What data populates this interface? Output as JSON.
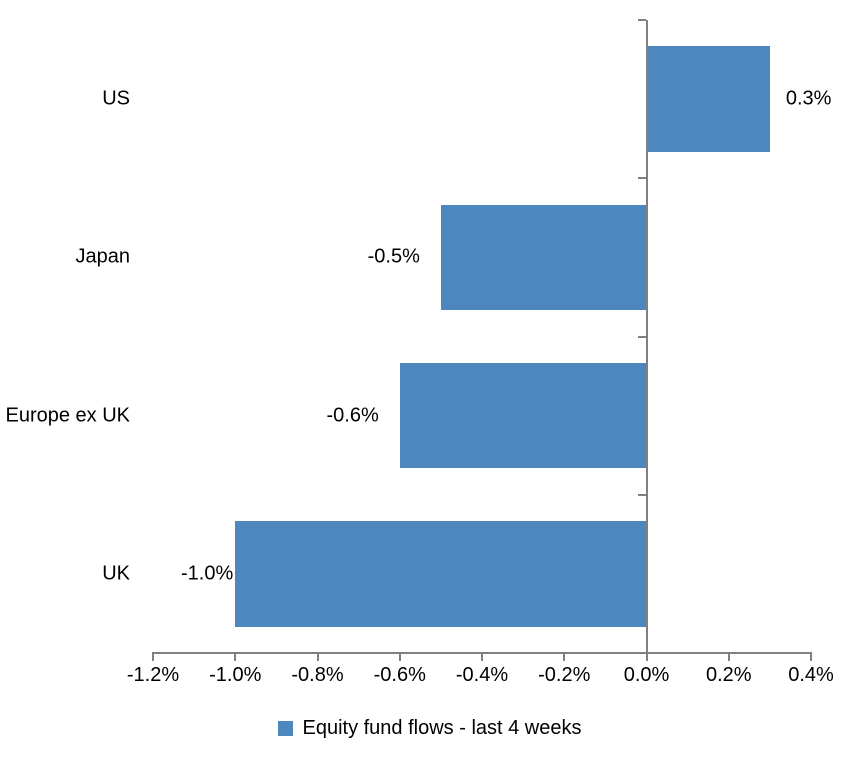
{
  "chart_data": {
    "type": "bar",
    "orientation": "horizontal",
    "title": "",
    "categories": [
      "US",
      "Japan",
      "Europe ex UK",
      "UK"
    ],
    "values": [
      0.3,
      -0.5,
      -0.6,
      -1.0
    ],
    "data_labels": [
      "0.3%",
      "-0.5%",
      "-0.6%",
      "-1.0%"
    ],
    "series_name": "Equity fund flows - last 4 weeks",
    "xlim": [
      -1.2,
      0.4
    ],
    "x_tick_values": [
      -1.2,
      -1.0,
      -0.8,
      -0.6,
      -0.4,
      -0.2,
      0.0,
      0.2,
      0.4
    ],
    "x_tick_labels": [
      "-1.2%",
      "-1.0%",
      "-0.8%",
      "-0.6%",
      "-0.4%",
      "-0.2%",
      "0.0%",
      "0.2%",
      "0.4%"
    ],
    "grid": false,
    "legend_position": "bottom",
    "bar_color": "#4E86BE",
    "axis_color": "#808080",
    "text_color": "#000000",
    "background": "#FFFFFF"
  },
  "legend": {
    "label": "Equity fund flows - last 4 weeks"
  }
}
